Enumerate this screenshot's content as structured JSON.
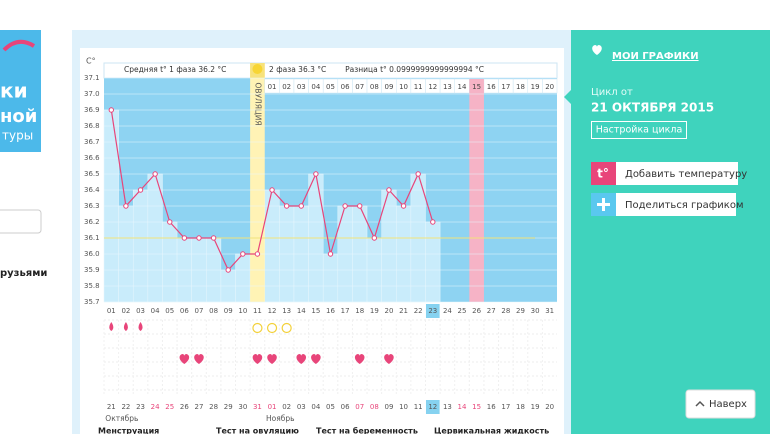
{
  "left": {
    "logo_lines": [
      "ки",
      "ной",
      "туры"
    ],
    "link": "рузьями"
  },
  "chart_data": {
    "type": "line",
    "y_axis_label": "C°",
    "ylim": [
      35.7,
      37.1
    ],
    "yticks": [
      35.7,
      35.8,
      35.9,
      {
        "value": 36,
        "label": "36.0"
      },
      36.1,
      36.2,
      36.3,
      36.4,
      36.5,
      36.6,
      36.7,
      36.8,
      36.9,
      {
        "value": 37,
        "label": "37.0"
      },
      37.1
    ],
    "categories": [
      "01",
      "02",
      "03",
      "04",
      "05",
      "06",
      "07",
      "08",
      "09",
      "10",
      "11",
      "12",
      "13",
      "14",
      "15",
      "16",
      "17",
      "18",
      "19",
      "20",
      "21",
      "22",
      "23",
      "24",
      "25",
      "26",
      "27",
      "28",
      "29",
      "30",
      "31"
    ],
    "values": [
      36.9,
      36.3,
      36.4,
      36.5,
      36.2,
      36.1,
      36.1,
      36.1,
      35.9,
      36.0,
      36.0,
      36.4,
      36.3,
      36.3,
      36.5,
      36.0,
      36.3,
      36.3,
      36.1,
      36.4,
      36.3,
      36.5,
      36.2,
      null,
      null,
      null,
      null,
      null,
      null,
      null,
      null
    ],
    "color": "#e8457a",
    "coverline": 36.1,
    "phase1_label": "Средняя t° 1 фаза 36.2 °C",
    "phase2_label": "2 фаза 36.3 °C",
    "difference_label": "Разница t° 0.0999999999999994 °C",
    "ovulation_label": "ОВУЛЯЦИЯ",
    "ovulation_day": "11",
    "today": "23",
    "phase2_days": [
      "01",
      "02",
      "03",
      "04",
      "05",
      "06",
      "07",
      "08",
      "09",
      "10",
      "11",
      "12",
      "13",
      "14",
      "15",
      "16",
      "17",
      "18",
      "19",
      "20"
    ],
    "phase2_highlight": "15",
    "menstruation_days": [
      "01",
      "02",
      "03"
    ],
    "ovulation_test_days": [
      "11",
      "12",
      "13"
    ],
    "heart_days": [
      "06",
      "07",
      "11",
      "12",
      "14",
      "15",
      "18",
      "20"
    ],
    "dates": [
      "21",
      "22",
      "23",
      "24",
      "25",
      "26",
      "27",
      "28",
      "29",
      "30",
      "31",
      "01",
      "02",
      "03",
      "04",
      "05",
      "06",
      "07",
      "08",
      "09",
      "10",
      "11",
      "12",
      "13",
      "14",
      "15",
      "16",
      "17",
      "18",
      "19",
      "20"
    ],
    "weekend_dates": [
      "24",
      "25",
      "31",
      "01",
      "07",
      "08",
      "14",
      "15"
    ],
    "today_date": "12",
    "months": [
      {
        "name": "Октябрь",
        "start": "21"
      },
      {
        "name": "Ноябрь",
        "start": "01"
      }
    ],
    "row_labels": [
      "Менструация",
      "Тест на овуляцию",
      "Тест на беременность",
      "Цервикальная жидкость"
    ]
  },
  "sidebar": {
    "my_charts": "МОИ ГРАФИКИ",
    "cycle_from": "Цикл от",
    "cycle_date": "21 ОКТЯБРЯ 2015",
    "cycle_settings": "Настройка цикла",
    "add_icon": "t°",
    "add_temperature": "Добавить температуру",
    "share_chart": "Поделиться графиком",
    "to_top": "Наверх"
  }
}
